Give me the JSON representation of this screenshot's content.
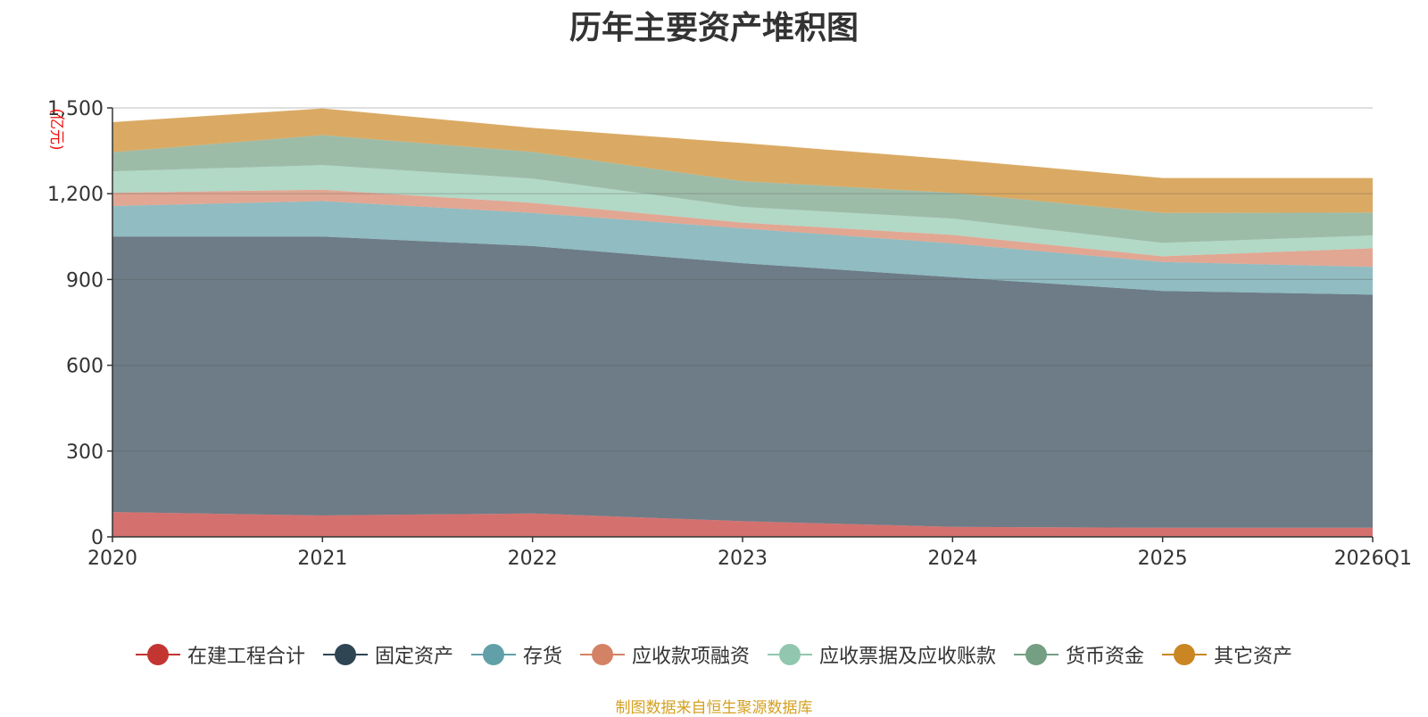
{
  "chart_data": {
    "type": "area",
    "stacked": true,
    "title": "历年主要资产堆积图",
    "ylabel": "(亿元)",
    "xlabel": "",
    "categories": [
      "2020",
      "2021",
      "2022",
      "2023",
      "2024",
      "2025",
      "2026Q1"
    ],
    "ylim": [
      0,
      1500
    ],
    "yticks": [
      0,
      300,
      600,
      900,
      1200,
      1500
    ],
    "ytick_labels": [
      "0",
      "300",
      "600",
      "900",
      "1,200",
      "1,500"
    ],
    "grid": true,
    "legend_position": "bottom",
    "series": [
      {
        "name": "在建工程合计",
        "color": "#c23531",
        "values": [
          87,
          75,
          82,
          55,
          35,
          32,
          32
        ]
      },
      {
        "name": "固定资产",
        "color": "#2f4554",
        "values": [
          963,
          975,
          935,
          902,
          873,
          828,
          815
        ]
      },
      {
        "name": "存货",
        "color": "#61a0a8",
        "values": [
          107,
          124,
          116,
          122,
          118,
          101,
          97
        ]
      },
      {
        "name": "应收款项融资",
        "color": "#d48265",
        "values": [
          46,
          40,
          35,
          20,
          30,
          20,
          65
        ]
      },
      {
        "name": "应收票据及应收账款",
        "color": "#91c7ae",
        "values": [
          75,
          86,
          85,
          55,
          57,
          47,
          45
        ]
      },
      {
        "name": "货币资金",
        "color": "#749f83",
        "values": [
          67,
          105,
          93,
          90,
          90,
          105,
          80
        ]
      },
      {
        "name": "其它资产",
        "color": "#ca8622",
        "values": [
          105,
          93,
          84,
          133,
          117,
          122,
          121
        ]
      }
    ]
  },
  "source_note": "制图数据来自恒生聚源数据库"
}
